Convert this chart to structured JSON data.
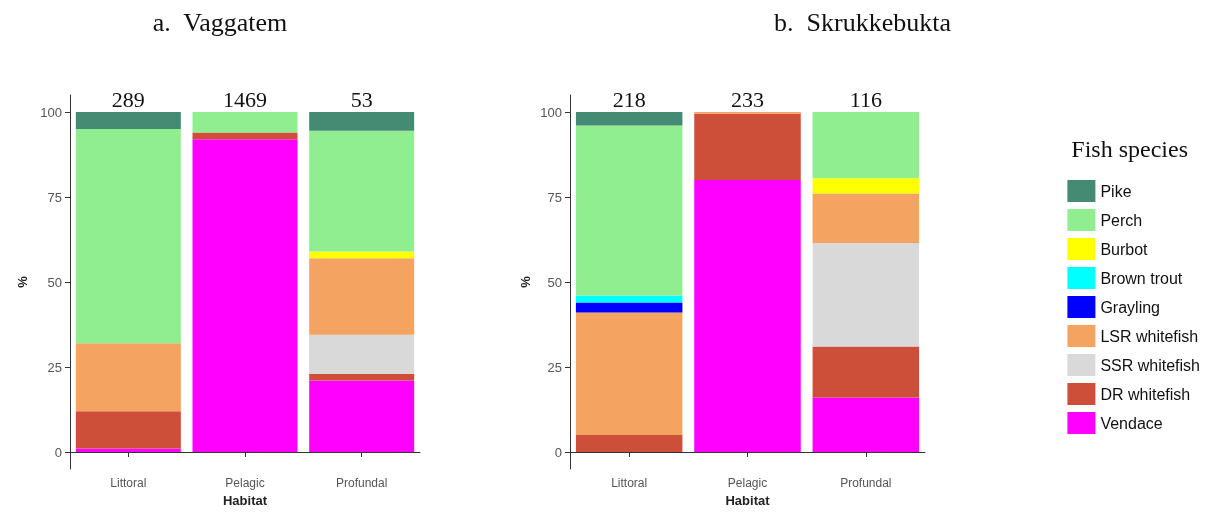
{
  "chart_data": [
    {
      "type": "bar",
      "title": "a.  Vaggatem",
      "xlabel": "Habitat",
      "ylabel": "%",
      "categories": [
        "Littoral",
        "Pelagic",
        "Profundal"
      ],
      "stacked": true,
      "ylim": [
        -5,
        105
      ],
      "yticks": [
        0,
        25,
        50,
        75,
        100
      ],
      "grid": false,
      "legend": false,
      "annotations": [
        {
          "text": "289",
          "x": "Littoral",
          "y": 100
        },
        {
          "text": "1469",
          "x": "Pelagic",
          "y": 100
        },
        {
          "text": "53",
          "x": "Profundal",
          "y": 100
        }
      ],
      "series": [
        {
          "color": "#ff00ff",
          "values": [
            1,
            92,
            21
          ]
        },
        {
          "color": "#cd4f39",
          "values": [
            11,
            2,
            2
          ]
        },
        {
          "color": "#d9d9d9",
          "values": [
            0,
            0,
            11.5
          ]
        },
        {
          "color": "#f4a460",
          "values": [
            20,
            0,
            22.5
          ]
        },
        {
          "color": "#ffff00",
          "values": [
            0,
            0,
            2
          ]
        },
        {
          "color": "#90ee90",
          "values": [
            63,
            6,
            35.5
          ]
        },
        {
          "color": "#458b74",
          "values": [
            5,
            0,
            5.5
          ]
        }
      ]
    },
    {
      "type": "bar",
      "title": "b.  Skrukkebukta",
      "xlabel": "Habitat",
      "ylabel": "%",
      "categories": [
        "Littoral",
        "Pelagic",
        "Profundal"
      ],
      "stacked": true,
      "ylim": [
        -5,
        105
      ],
      "yticks": [
        0,
        25,
        50,
        75,
        100
      ],
      "grid": false,
      "legend": "right",
      "legend_title": "Fish species",
      "annotations": [
        {
          "text": "218",
          "x": "Littoral",
          "y": 100
        },
        {
          "text": "233",
          "x": "Pelagic",
          "y": 100
        },
        {
          "text": "116",
          "x": "Profundal",
          "y": 100
        }
      ],
      "series": [
        {
          "name": "Vendace",
          "color": "#ff00ff",
          "values": [
            0,
            80,
            16
          ]
        },
        {
          "name": "DR whitefish",
          "color": "#cd4f39",
          "values": [
            5,
            19.5,
            15
          ]
        },
        {
          "name": "SSR whitefish",
          "color": "#d9d9d9",
          "values": [
            0,
            0,
            30.5
          ]
        },
        {
          "name": "LSR whitefish",
          "color": "#f4a460",
          "values": [
            36,
            0.5,
            14.5
          ]
        },
        {
          "name": "Grayling",
          "color": "#0000ff",
          "values": [
            3,
            0,
            0
          ]
        },
        {
          "name": "Brown trout",
          "color": "#00ffff",
          "values": [
            2,
            0,
            0
          ]
        },
        {
          "name": "Burbot",
          "color": "#ffff00",
          "values": [
            0,
            0,
            4.5
          ]
        },
        {
          "name": "Perch",
          "color": "#90ee90",
          "values": [
            50,
            0,
            19.5
          ]
        },
        {
          "name": "Pike",
          "color": "#458b74",
          "values": [
            4,
            0,
            0
          ]
        }
      ]
    }
  ]
}
